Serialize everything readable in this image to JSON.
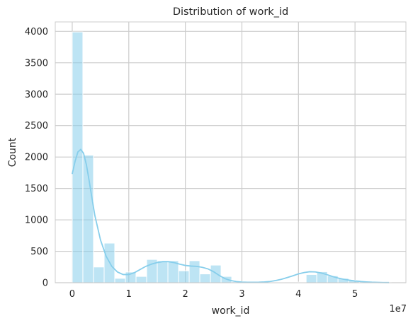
{
  "chart_data": {
    "type": "bar",
    "title": "Distribution of work_id",
    "xlabel": "work_id",
    "ylabel": "Count",
    "x_offset_text": "1e7",
    "x_scale_factor": 10000000,
    "xlim": [
      -3000000,
      59000000
    ],
    "ylim": [
      0,
      4150
    ],
    "x_ticks": [
      0,
      10000000,
      20000000,
      30000000,
      40000000,
      50000000
    ],
    "x_tick_labels": [
      "0",
      "1",
      "2",
      "3",
      "4",
      "5"
    ],
    "y_ticks": [
      0,
      500,
      1000,
      1500,
      2000,
      2500,
      3000,
      3500,
      4000
    ],
    "y_tick_labels": [
      "0",
      "500",
      "1000",
      "1500",
      "2000",
      "2500",
      "3000",
      "3500",
      "4000"
    ],
    "grid": true,
    "bin_start": 0,
    "bin_width": 1880000,
    "values": [
      3990,
      2030,
      250,
      630,
      70,
      170,
      100,
      370,
      350,
      350,
      190,
      350,
      140,
      280,
      100,
      15,
      5,
      5,
      5,
      10,
      5,
      10,
      130,
      175,
      110,
      70,
      40,
      15,
      10,
      5
    ],
    "kde": {
      "x": [
        0,
        500000,
        1000000,
        1500000,
        2000000,
        2500000,
        3000000,
        3500000,
        4000000,
        5000000,
        6000000,
        7000000,
        8000000,
        9000000,
        10000000,
        11000000,
        12000000,
        13000000,
        14000000,
        15000000,
        16000000,
        17000000,
        18000000,
        19000000,
        20000000,
        21000000,
        22000000,
        23000000,
        24000000,
        25000000,
        26000000,
        27000000,
        28000000,
        29000000,
        30000000,
        31000000,
        32000000,
        33000000,
        34000000,
        35000000,
        36000000,
        37000000,
        38000000,
        39000000,
        40000000,
        41000000,
        42000000,
        43000000,
        44000000,
        45000000,
        46000000,
        47000000,
        48000000,
        49000000,
        50000000,
        51000000,
        52000000,
        53000000,
        54000000,
        55000000,
        56000000
      ],
      "y": [
        1730,
        1930,
        2080,
        2120,
        2060,
        1880,
        1620,
        1340,
        1070,
        680,
        420,
        260,
        170,
        130,
        130,
        160,
        210,
        260,
        295,
        320,
        335,
        335,
        320,
        295,
        275,
        265,
        260,
        245,
        220,
        175,
        115,
        65,
        35,
        18,
        10,
        7,
        7,
        8,
        12,
        20,
        35,
        55,
        82,
        110,
        140,
        162,
        175,
        172,
        155,
        130,
        100,
        75,
        55,
        40,
        28,
        20,
        13,
        8,
        5,
        3,
        2
      ]
    },
    "colors": {
      "bar": "#87ceeb",
      "line": "#87ceeb",
      "grid": "#cccccc",
      "frame": "#cccccc"
    }
  }
}
